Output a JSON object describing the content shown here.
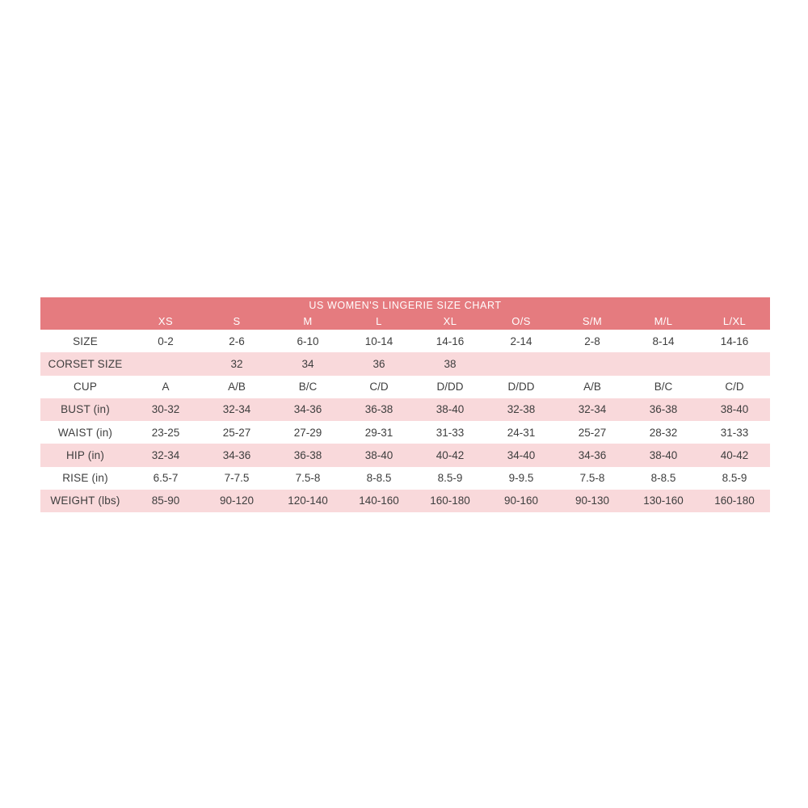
{
  "page": {
    "background": "#ffffff"
  },
  "chart_data": {
    "type": "table",
    "title": "US WOMEN'S LINGERIE SIZE CHART",
    "columns": [
      "XS",
      "S",
      "M",
      "L",
      "XL",
      "O/S",
      "S/M",
      "M/L",
      "L/XL"
    ],
    "rows": [
      {
        "label": "SIZE",
        "values": [
          "0-2",
          "2-6",
          "6-10",
          "10-14",
          "14-16",
          "2-14",
          "2-8",
          "8-14",
          "14-16"
        ]
      },
      {
        "label": "CORSET SIZE",
        "values": [
          "",
          "32",
          "34",
          "36",
          "38",
          "",
          "",
          "",
          ""
        ]
      },
      {
        "label": "CUP",
        "values": [
          "A",
          "A/B",
          "B/C",
          "C/D",
          "D/DD",
          "D/DD",
          "A/B",
          "B/C",
          "C/D"
        ]
      },
      {
        "label": "BUST (in)",
        "values": [
          "30-32",
          "32-34",
          "34-36",
          "36-38",
          "38-40",
          "32-38",
          "32-34",
          "36-38",
          "38-40"
        ]
      },
      {
        "label": "WAIST (in)",
        "values": [
          "23-25",
          "25-27",
          "27-29",
          "29-31",
          "31-33",
          "24-31",
          "25-27",
          "28-32",
          "31-33"
        ]
      },
      {
        "label": "HIP (in)",
        "values": [
          "32-34",
          "34-36",
          "36-38",
          "38-40",
          "40-42",
          "34-40",
          "34-36",
          "38-40",
          "40-42"
        ]
      },
      {
        "label": "RISE (in)",
        "values": [
          "6.5-7",
          "7-7.5",
          "7.5-8",
          "8-8.5",
          "8.5-9",
          "9-9.5",
          "7.5-8",
          "8-8.5",
          "8.5-9"
        ]
      },
      {
        "label": "WEIGHT (lbs)",
        "values": [
          "85-90",
          "90-120",
          "120-140",
          "140-160",
          "160-180",
          "90-160",
          "90-130",
          "130-160",
          "160-180"
        ]
      }
    ],
    "layout": {
      "striped": true,
      "header_position": "top",
      "label_column_first": true
    },
    "colors": {
      "header_bg": "#e57b7f",
      "stripe_bg": "#f9d9db",
      "row_bg": "#ffffff",
      "header_text": "#ffffff",
      "body_text": "#3e3e3e"
    }
  }
}
